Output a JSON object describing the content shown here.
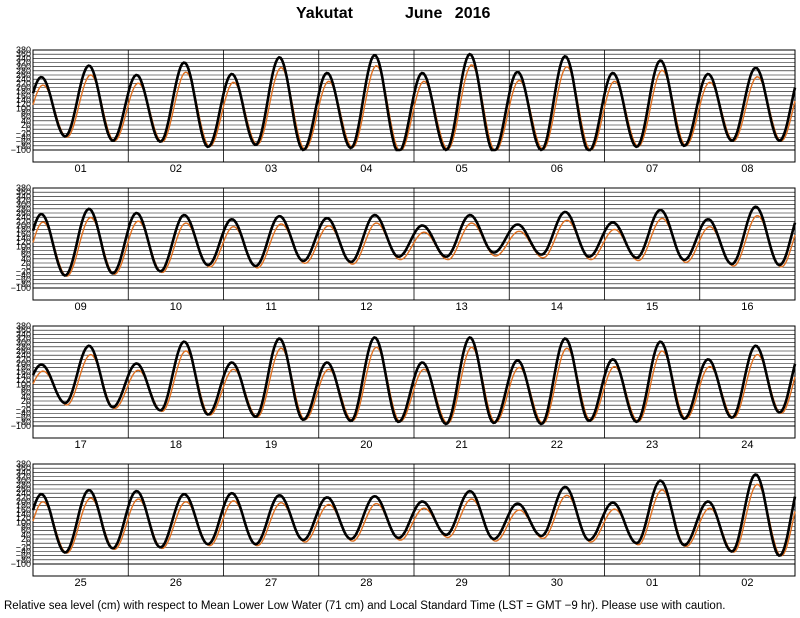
{
  "header": {
    "station": "Yakutat",
    "month_year": "June   2016"
  },
  "footer": {
    "caption": "Relative sea level (cm) with respect to Mean Lower Low Water (71 cm) and Local Standard Time (LST = GMT −9 hr). Please use with caution."
  },
  "chart_data": {
    "type": "line",
    "title": "Yakutat          June   2016",
    "ylabel": "",
    "xlabel": "",
    "ylim": [
      -100,
      380
    ],
    "yticks": [
      -100,
      -80,
      -60,
      -40,
      -20,
      0,
      20,
      40,
      60,
      80,
      100,
      120,
      140,
      160,
      180,
      200,
      220,
      240,
      260,
      280,
      300,
      320,
      340,
      360,
      380
    ],
    "ytick_labels": [
      "−100",
      "−80",
      "−60",
      "−40",
      "−20",
      "0",
      "20",
      "40",
      "60",
      "80",
      "100",
      "120",
      "140",
      "160",
      "180",
      "200",
      "220",
      "240",
      "260",
      "280",
      "300",
      "320",
      "340",
      "360",
      "380"
    ],
    "grid": true,
    "series_colors": {
      "predicted": "#000000",
      "observed": "#e07020"
    },
    "panels": [
      {
        "days": [
          "01",
          "02",
          "03",
          "04",
          "05",
          "06",
          "07",
          "08"
        ],
        "daily_extremes": [
          [
            250,
            -35,
            305,
            -55
          ],
          [
            260,
            -60,
            320,
            -85
          ],
          [
            265,
            -75,
            345,
            -100
          ],
          [
            270,
            -90,
            355,
            -110
          ],
          [
            270,
            -100,
            360,
            -110
          ],
          [
            275,
            -100,
            350,
            -105
          ],
          [
            270,
            -85,
            330,
            -80
          ],
          [
            265,
            -55,
            295,
            -55
          ]
        ]
      },
      {
        "days": [
          "09",
          "10",
          "11",
          "12",
          "13",
          "14",
          "15",
          "16"
        ],
        "daily_extremes": [
          [
            255,
            -40,
            280,
            -30
          ],
          [
            260,
            -20,
            250,
            10
          ],
          [
            230,
            5,
            245,
            30
          ],
          [
            235,
            25,
            250,
            50
          ],
          [
            200,
            50,
            250,
            70
          ],
          [
            205,
            60,
            265,
            50
          ],
          [
            215,
            45,
            275,
            35
          ],
          [
            230,
            15,
            290,
            10
          ]
        ]
      },
      {
        "days": [
          "17",
          "18",
          "19",
          "20",
          "21",
          "22",
          "23",
          "24"
        ],
        "daily_extremes": [
          [
            195,
            10,
            285,
            -10
          ],
          [
            200,
            -25,
            305,
            -45
          ],
          [
            205,
            -55,
            320,
            -70
          ],
          [
            205,
            -75,
            325,
            -80
          ],
          [
            205,
            -90,
            325,
            -85
          ],
          [
            215,
            -90,
            320,
            -75
          ],
          [
            220,
            -80,
            305,
            -65
          ],
          [
            220,
            -60,
            285,
            -35
          ]
        ]
      },
      {
        "days": [
          "25",
          "26",
          "27",
          "28",
          "29",
          "30",
          "01",
          "02"
        ],
        "daily_extremes": [
          [
            235,
            -45,
            255,
            -25
          ],
          [
            250,
            -20,
            235,
            -5
          ],
          [
            240,
            -5,
            230,
            15
          ],
          [
            220,
            20,
            225,
            25
          ],
          [
            200,
            40,
            250,
            20
          ],
          [
            190,
            35,
            270,
            15
          ],
          [
            195,
            0,
            300,
            -10
          ],
          [
            200,
            -40,
            330,
            -60
          ]
        ]
      }
    ]
  }
}
